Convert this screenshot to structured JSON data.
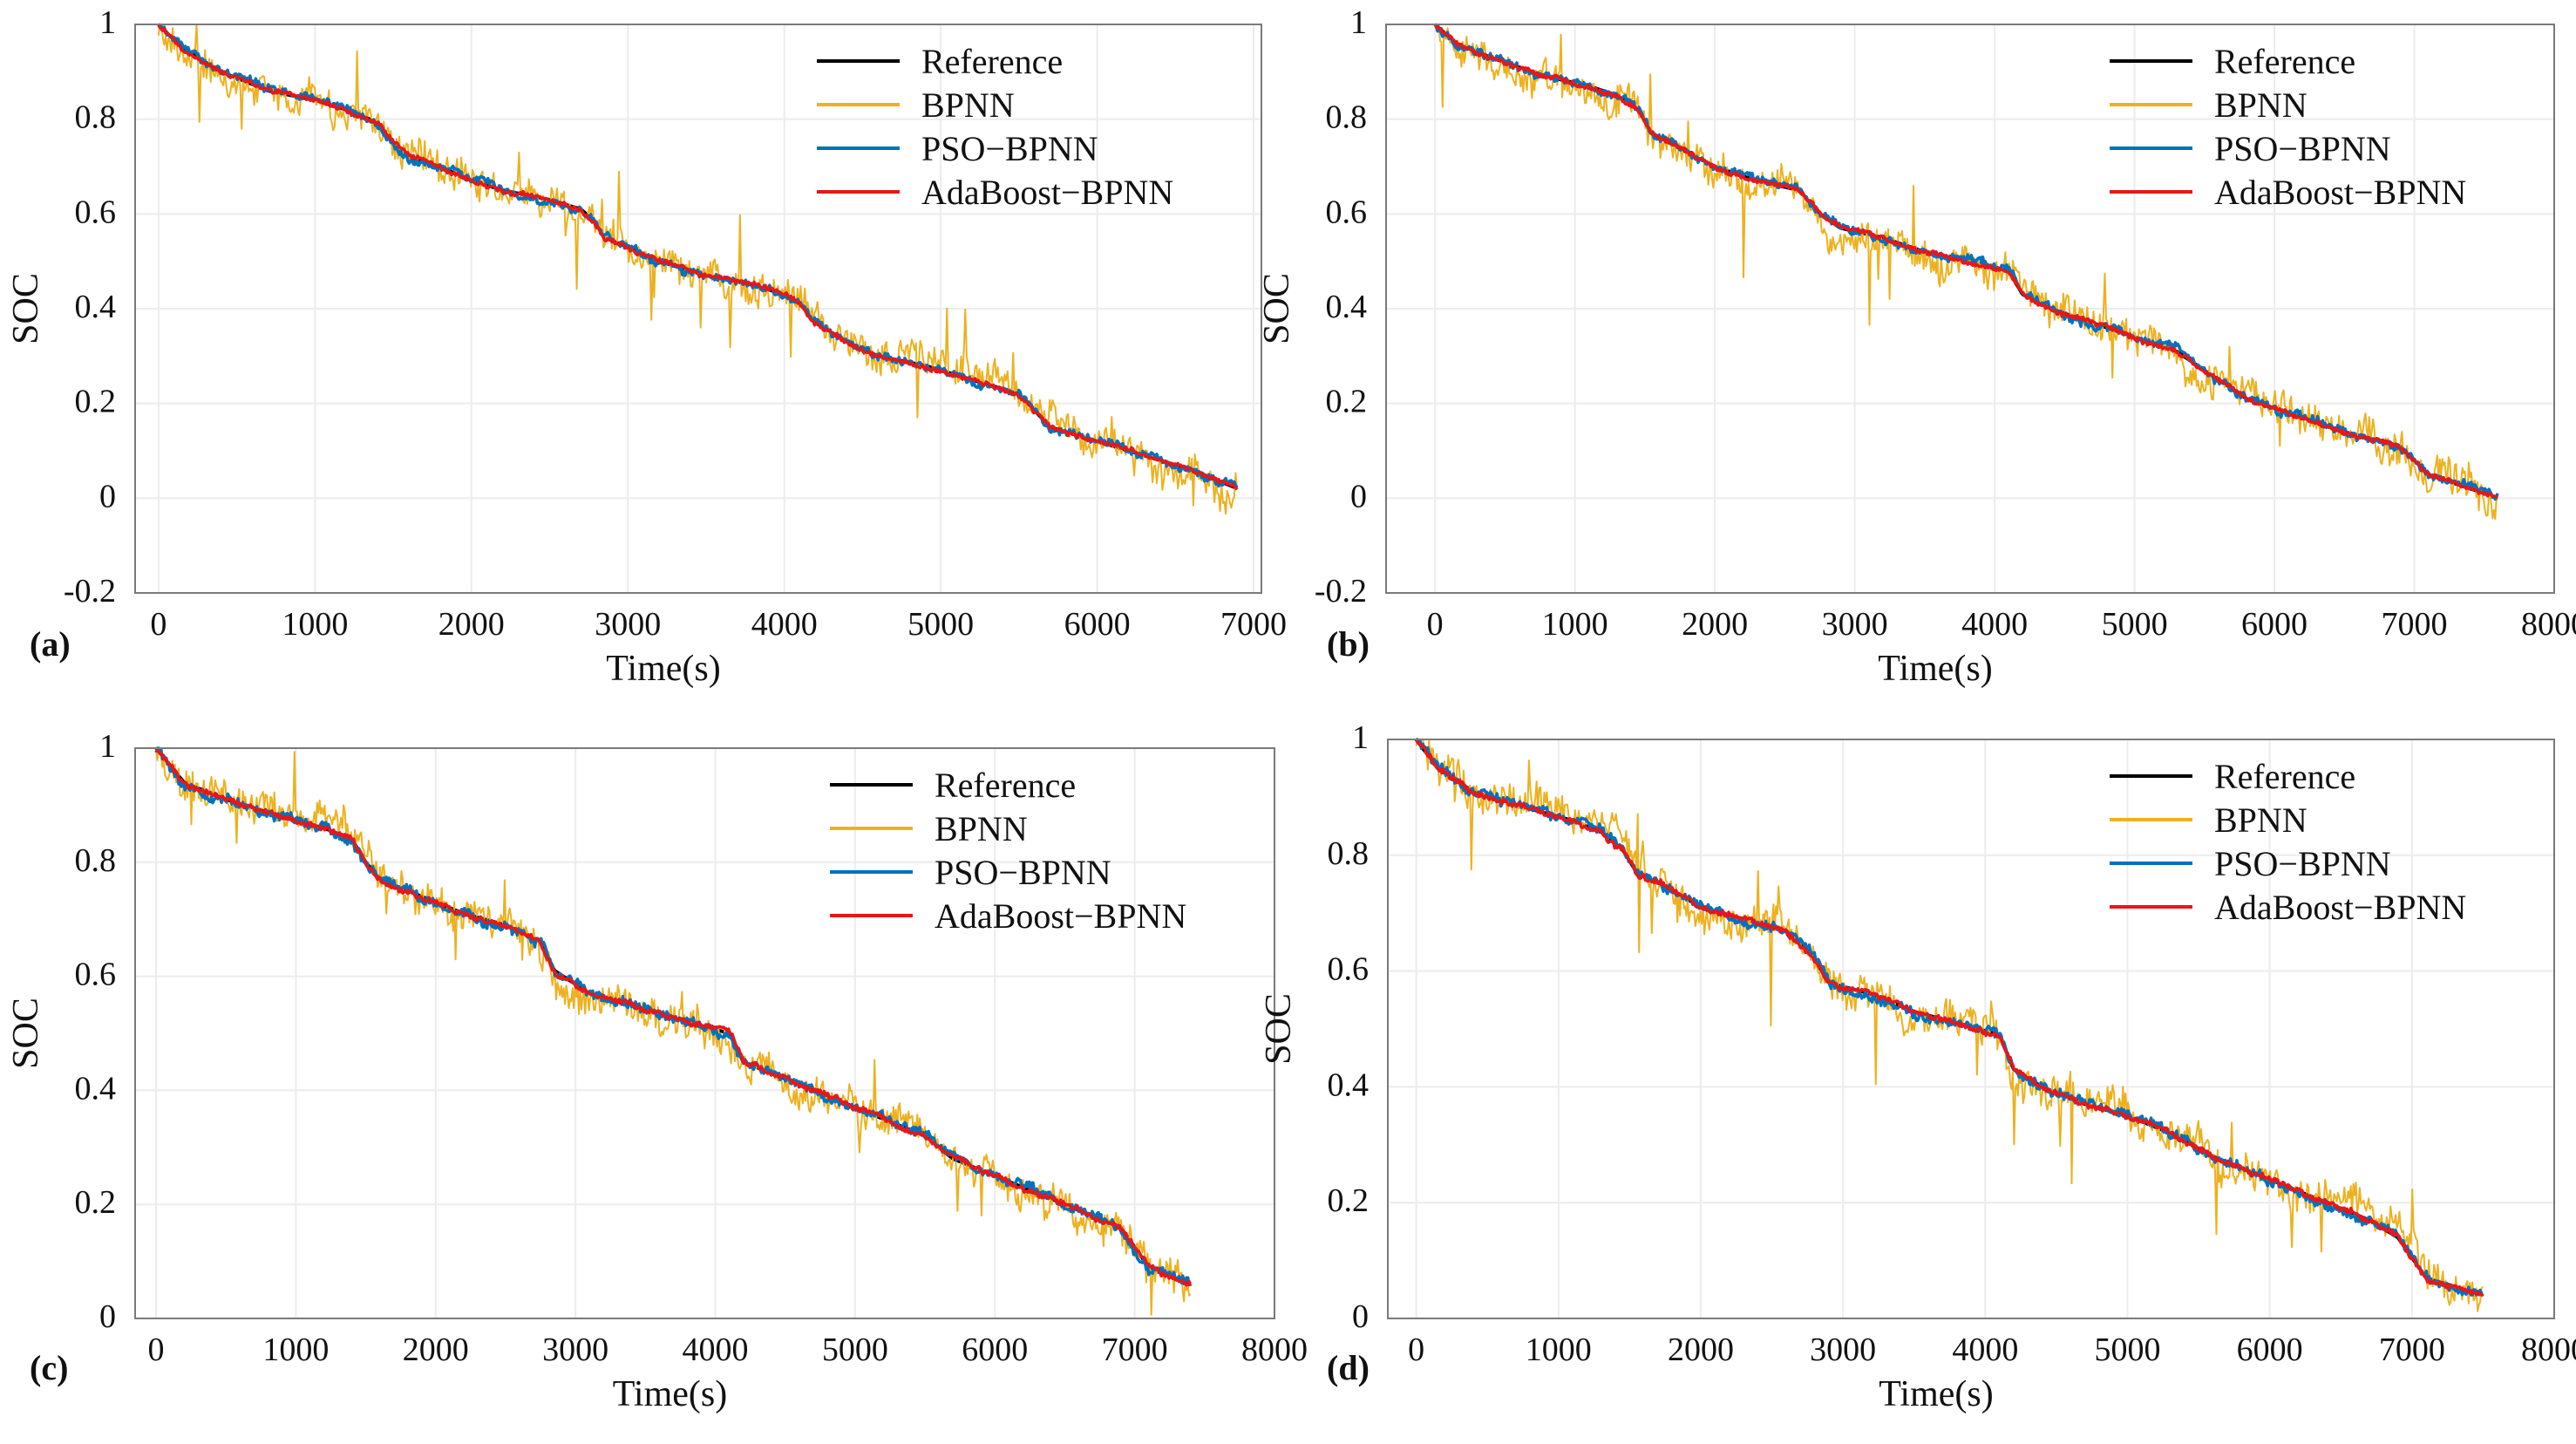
{
  "chart_data": [
    {
      "panel": "(a)",
      "type": "line",
      "xlabel": "Time(s)",
      "ylabel": "SOC",
      "xlim": [
        -150,
        7050
      ],
      "ylim": [
        -0.2,
        1.0
      ],
      "xticks": [
        "0",
        "1000",
        "2000",
        "3000",
        "4000",
        "5000",
        "6000",
        "7000"
      ],
      "yticks": [
        "-0.2",
        "0",
        "0.2",
        "0.4",
        "0.6",
        "0.8",
        "1"
      ],
      "grid": true,
      "legend_position": "top-right",
      "x_end": 6900,
      "reference_profile": [
        [
          0,
          1.0
        ],
        [
          150,
          0.95
        ],
        [
          400,
          0.9
        ],
        [
          700,
          0.86
        ],
        [
          1000,
          0.84
        ],
        [
          1200,
          0.82
        ],
        [
          1350,
          0.8
        ],
        [
          1400,
          0.79
        ],
        [
          1500,
          0.75
        ],
        [
          1600,
          0.72
        ],
        [
          1800,
          0.7
        ],
        [
          2000,
          0.67
        ],
        [
          2200,
          0.65
        ],
        [
          2500,
          0.63
        ],
        [
          2700,
          0.61
        ],
        [
          2800,
          0.58
        ],
        [
          2850,
          0.55
        ],
        [
          3000,
          0.53
        ],
        [
          3200,
          0.5
        ],
        [
          3500,
          0.47
        ],
        [
          3800,
          0.45
        ],
        [
          4000,
          0.43
        ],
        [
          4100,
          0.41
        ],
        [
          4200,
          0.37
        ],
        [
          4400,
          0.33
        ],
        [
          4600,
          0.3
        ],
        [
          4900,
          0.28
        ],
        [
          5200,
          0.25
        ],
        [
          5500,
          0.22
        ],
        [
          5700,
          0.15
        ],
        [
          6000,
          0.12
        ],
        [
          6300,
          0.09
        ],
        [
          6600,
          0.06
        ],
        [
          6900,
          0.02
        ]
      ],
      "series": [
        {
          "name": "Reference",
          "color": "#000000",
          "noise": 0
        },
        {
          "name": "BPNN",
          "color": "#EDB120",
          "noise": 0.06
        },
        {
          "name": "PSO−BPNN",
          "color": "#0072BD",
          "noise": 0.015
        },
        {
          "name": "AdaBoost−BPNN",
          "color": "#E8161B",
          "noise": 0.008
        }
      ]
    },
    {
      "panel": "(b)",
      "type": "line",
      "xlabel": "Time(s)",
      "ylabel": "SOC",
      "xlim": [
        -350,
        8000
      ],
      "ylim": [
        -0.2,
        1.0
      ],
      "xticks": [
        "0",
        "1000",
        "2000",
        "3000",
        "4000",
        "5000",
        "6000",
        "7000",
        "8000"
      ],
      "yticks": [
        "-0.2",
        "0",
        "0.2",
        "0.4",
        "0.6",
        "0.8",
        "1"
      ],
      "grid": true,
      "legend_position": "top-right",
      "x_end": 7600,
      "reference_profile": [
        [
          0,
          1.0
        ],
        [
          150,
          0.96
        ],
        [
          400,
          0.93
        ],
        [
          800,
          0.89
        ],
        [
          1100,
          0.87
        ],
        [
          1300,
          0.85
        ],
        [
          1450,
          0.82
        ],
        [
          1550,
          0.77
        ],
        [
          1800,
          0.73
        ],
        [
          2000,
          0.7
        ],
        [
          2300,
          0.67
        ],
        [
          2600,
          0.65
        ],
        [
          2750,
          0.6
        ],
        [
          2900,
          0.57
        ],
        [
          3200,
          0.55
        ],
        [
          3500,
          0.52
        ],
        [
          3800,
          0.5
        ],
        [
          4100,
          0.48
        ],
        [
          4200,
          0.43
        ],
        [
          4400,
          0.4
        ],
        [
          4700,
          0.37
        ],
        [
          5000,
          0.34
        ],
        [
          5300,
          0.31
        ],
        [
          5600,
          0.25
        ],
        [
          5800,
          0.21
        ],
        [
          6100,
          0.18
        ],
        [
          6500,
          0.14
        ],
        [
          6900,
          0.11
        ],
        [
          7100,
          0.05
        ],
        [
          7400,
          0.02
        ],
        [
          7600,
          0.0
        ]
      ],
      "series": [
        {
          "name": "Reference",
          "color": "#000000",
          "noise": 0
        },
        {
          "name": "BPNN",
          "color": "#EDB120",
          "noise": 0.06
        },
        {
          "name": "PSO−BPNN",
          "color": "#0072BD",
          "noise": 0.015
        },
        {
          "name": "AdaBoost−BPNN",
          "color": "#E8161B",
          "noise": 0.008
        }
      ]
    },
    {
      "panel": "(c)",
      "type": "line",
      "xlabel": "Time(s)",
      "ylabel": "SOC",
      "xlim": [
        -150,
        8000
      ],
      "ylim": [
        0,
        1.0
      ],
      "xticks": [
        "0",
        "1000",
        "2000",
        "3000",
        "4000",
        "5000",
        "6000",
        "7000",
        "8000"
      ],
      "yticks": [
        "0",
        "0.2",
        "0.4",
        "0.6",
        "0.8",
        "1"
      ],
      "grid": true,
      "legend_position": "top-right",
      "x_end": 7400,
      "reference_profile": [
        [
          0,
          1.0
        ],
        [
          200,
          0.94
        ],
        [
          500,
          0.91
        ],
        [
          900,
          0.88
        ],
        [
          1200,
          0.86
        ],
        [
          1400,
          0.84
        ],
        [
          1500,
          0.8
        ],
        [
          1600,
          0.77
        ],
        [
          1900,
          0.74
        ],
        [
          2200,
          0.71
        ],
        [
          2500,
          0.69
        ],
        [
          2750,
          0.66
        ],
        [
          2850,
          0.61
        ],
        [
          3100,
          0.57
        ],
        [
          3400,
          0.55
        ],
        [
          3800,
          0.52
        ],
        [
          4100,
          0.5
        ],
        [
          4200,
          0.45
        ],
        [
          4500,
          0.42
        ],
        [
          4900,
          0.38
        ],
        [
          5200,
          0.35
        ],
        [
          5500,
          0.32
        ],
        [
          5700,
          0.28
        ],
        [
          6000,
          0.25
        ],
        [
          6500,
          0.2
        ],
        [
          6900,
          0.16
        ],
        [
          7100,
          0.09
        ],
        [
          7400,
          0.06
        ]
      ],
      "series": [
        {
          "name": "Reference",
          "color": "#000000",
          "noise": 0
        },
        {
          "name": "BPNN",
          "color": "#EDB120",
          "noise": 0.05
        },
        {
          "name": "PSO−BPNN",
          "color": "#0072BD",
          "noise": 0.015
        },
        {
          "name": "AdaBoost−BPNN",
          "color": "#E8161B",
          "noise": 0.008
        }
      ]
    },
    {
      "panel": "(d)",
      "type": "line",
      "xlabel": "Time(s)",
      "ylabel": "SOC",
      "xlim": [
        -200,
        8000
      ],
      "ylim": [
        0,
        1.0
      ],
      "xticks": [
        "0",
        "1000",
        "2000",
        "3000",
        "4000",
        "5000",
        "6000",
        "7000",
        "8000"
      ],
      "yticks": [
        "0",
        "0.2",
        "0.4",
        "0.6",
        "0.8",
        "1"
      ],
      "grid": true,
      "legend_position": "top-right",
      "x_end": 7500,
      "reference_profile": [
        [
          0,
          1.0
        ],
        [
          150,
          0.95
        ],
        [
          400,
          0.91
        ],
        [
          800,
          0.88
        ],
        [
          1100,
          0.86
        ],
        [
          1300,
          0.84
        ],
        [
          1450,
          0.81
        ],
        [
          1550,
          0.77
        ],
        [
          1800,
          0.74
        ],
        [
          2000,
          0.71
        ],
        [
          2300,
          0.69
        ],
        [
          2600,
          0.67
        ],
        [
          2800,
          0.62
        ],
        [
          2900,
          0.58
        ],
        [
          3200,
          0.56
        ],
        [
          3500,
          0.53
        ],
        [
          3800,
          0.51
        ],
        [
          4100,
          0.49
        ],
        [
          4200,
          0.43
        ],
        [
          4400,
          0.4
        ],
        [
          4700,
          0.37
        ],
        [
          5000,
          0.35
        ],
        [
          5300,
          0.32
        ],
        [
          5600,
          0.28
        ],
        [
          5900,
          0.25
        ],
        [
          6300,
          0.21
        ],
        [
          6700,
          0.17
        ],
        [
          6900,
          0.14
        ],
        [
          7100,
          0.07
        ],
        [
          7500,
          0.04
        ]
      ],
      "series": [
        {
          "name": "Reference",
          "color": "#000000",
          "noise": 0
        },
        {
          "name": "BPNN",
          "color": "#EDB120",
          "noise": 0.05
        },
        {
          "name": "PSO−BPNN",
          "color": "#0072BD",
          "noise": 0.015
        },
        {
          "name": "AdaBoost−BPNN",
          "color": "#E8161B",
          "noise": 0.008
        }
      ]
    }
  ]
}
